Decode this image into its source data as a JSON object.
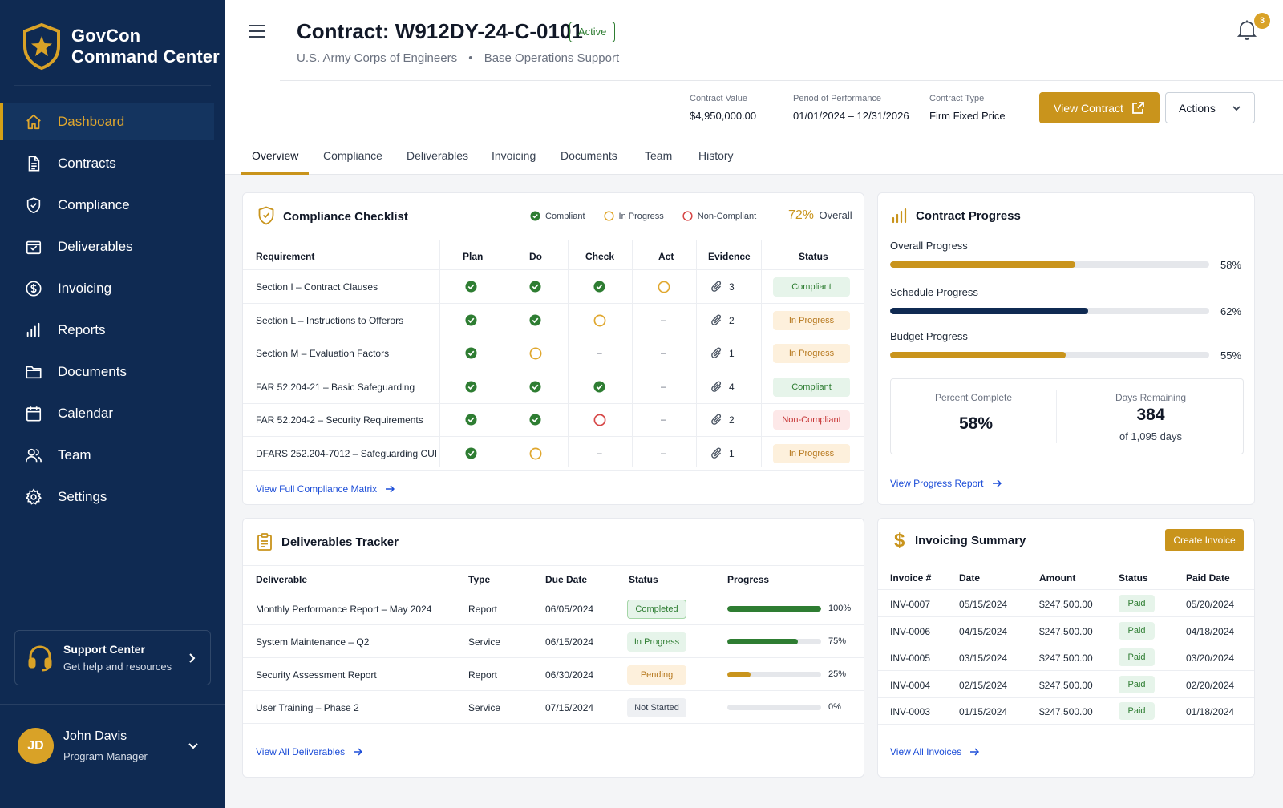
{
  "app": {
    "name_line1": "GovCon",
    "name_line2": "Command Center"
  },
  "sidebar": {
    "items": [
      {
        "label": "Dashboard",
        "icon": "home-icon",
        "active": true
      },
      {
        "label": "Contracts",
        "icon": "document-icon"
      },
      {
        "label": "Compliance",
        "icon": "shield-check-icon"
      },
      {
        "label": "Deliverables",
        "icon": "box-icon"
      },
      {
        "label": "Invoicing",
        "icon": "dollar-circle-icon"
      },
      {
        "label": "Reports",
        "icon": "bar-chart-icon"
      },
      {
        "label": "Documents",
        "icon": "folder-icon"
      },
      {
        "label": "Calendar",
        "icon": "calendar-icon"
      },
      {
        "label": "Team",
        "icon": "users-icon"
      },
      {
        "label": "Settings",
        "icon": "gear-icon"
      }
    ],
    "support": {
      "title": "Support Center",
      "subtitle": "Get help and resources"
    },
    "user": {
      "initials": "JD",
      "name": "John Davis",
      "role": "Program Manager"
    }
  },
  "header": {
    "title": "Contract: W912DY-24-C-0101",
    "status": "Active",
    "agency": "U.S. Army Corps of Engineers",
    "separator": "•",
    "program": "Base Operations Support",
    "notifications": "3",
    "meta": [
      {
        "label": "Contract Value",
        "value": "$4,950,000.00"
      },
      {
        "label": "Period of Performance",
        "value": "01/01/2024 – 12/31/2026"
      },
      {
        "label": "Contract Type",
        "value": "Firm Fixed Price"
      }
    ],
    "view_contract": "View Contract",
    "actions": "Actions"
  },
  "tabs": [
    "Overview",
    "Compliance",
    "Deliverables",
    "Invoicing",
    "Documents",
    "Team",
    "History"
  ],
  "compliance": {
    "title": "Compliance Checklist",
    "legend": [
      "Compliant",
      "In Progress",
      "Non-Compliant"
    ],
    "overall_pct": "72%",
    "overall_label": "Overall",
    "columns": [
      "Requirement",
      "Plan",
      "Do",
      "Check",
      "Act",
      "Evidence",
      "Status"
    ],
    "rows": [
      {
        "req": "Section I – Contract Clauses",
        "plan": "done",
        "do": "done",
        "check": "done",
        "act": "progress",
        "evidence": "3",
        "status": "Compliant"
      },
      {
        "req": "Section L – Instructions to Offerors",
        "plan": "done",
        "do": "done",
        "check": "progress",
        "act": "–",
        "evidence": "2",
        "status": "In Progress"
      },
      {
        "req": "Section M – Evaluation Factors",
        "plan": "done",
        "do": "progress",
        "check": "–",
        "act": "–",
        "evidence": "1",
        "status": "In Progress"
      },
      {
        "req": "FAR 52.204-21 – Basic Safeguarding",
        "plan": "done",
        "do": "done",
        "check": "done",
        "act": "–",
        "evidence": "4",
        "status": "Compliant"
      },
      {
        "req": "FAR 52.204-2 – Security Requirements",
        "plan": "done",
        "do": "done",
        "check": "fail",
        "act": "–",
        "evidence": "2",
        "status": "Non-Compliant"
      },
      {
        "req": "DFARS 252.204-7012 – Safeguarding CUI",
        "plan": "done",
        "do": "progress",
        "check": "–",
        "act": "–",
        "evidence": "1",
        "status": "In Progress"
      }
    ],
    "link": "View Full Compliance Matrix"
  },
  "progress": {
    "title": "Contract Progress",
    "bars": [
      {
        "label": "Overall Progress",
        "pct_label": "58%",
        "value": 0.58,
        "color": "#c9941c"
      },
      {
        "label": "Schedule Progress",
        "pct_label": "62%",
        "value": 0.62,
        "color": "#0f2a52"
      },
      {
        "label": "Budget Progress",
        "pct_label": "55%",
        "value": 0.55,
        "color": "#c9941c"
      }
    ],
    "percent_complete_label": "Percent Complete",
    "percent_complete": "58%",
    "days_remaining_label": "Days Remaining",
    "days_remaining": "384",
    "days_total": "of 1,095 days",
    "link": "View Progress Report"
  },
  "deliverables": {
    "title": "Deliverables Tracker",
    "columns": [
      "Deliverable",
      "Type",
      "Due Date",
      "Status",
      "Progress"
    ],
    "rows": [
      {
        "name": "Monthly Performance Report – May 2024",
        "type": "Report",
        "due": "06/05/2024",
        "status": "Completed",
        "pct_label": "100%",
        "value": 1.0,
        "color": "#2e7d32"
      },
      {
        "name": "System Maintenance – Q2",
        "type": "Service",
        "due": "06/15/2024",
        "status": "In Progress",
        "pct_label": "75%",
        "value": 0.75,
        "color": "#2e7d32"
      },
      {
        "name": "Security Assessment Report",
        "type": "Report",
        "due": "06/30/2024",
        "status": "Pending",
        "pct_label": "25%",
        "value": 0.25,
        "color": "#c9941c"
      },
      {
        "name": "User Training – Phase 2",
        "type": "Service",
        "due": "07/15/2024",
        "status": "Not Started",
        "pct_label": "0%",
        "value": 0,
        "color": "#9ca3af"
      }
    ],
    "link": "View All Deliverables"
  },
  "invoicing": {
    "title": "Invoicing Summary",
    "create": "Create Invoice",
    "columns": [
      "Invoice #",
      "Date",
      "Amount",
      "Status",
      "Paid Date"
    ],
    "rows": [
      {
        "inv": "INV-0007",
        "date": "05/15/2024",
        "amount": "$247,500.00",
        "status": "Paid",
        "paid": "05/20/2024"
      },
      {
        "inv": "INV-0006",
        "date": "04/15/2024",
        "amount": "$247,500.00",
        "status": "Paid",
        "paid": "04/18/2024"
      },
      {
        "inv": "INV-0005",
        "date": "03/15/2024",
        "amount": "$247,500.00",
        "status": "Paid",
        "paid": "03/20/2024"
      },
      {
        "inv": "INV-0004",
        "date": "02/15/2024",
        "amount": "$247,500.00",
        "status": "Paid",
        "paid": "02/20/2024"
      },
      {
        "inv": "INV-0003",
        "date": "01/15/2024",
        "amount": "$247,500.00",
        "status": "Paid",
        "paid": "01/18/2024"
      }
    ],
    "link": "View All Invoices"
  },
  "colors": {
    "navy": "#0f2a52",
    "gold": "#c9941c",
    "green": "#2e7d32",
    "amber": "#e0a72e",
    "red": "#d64545"
  }
}
